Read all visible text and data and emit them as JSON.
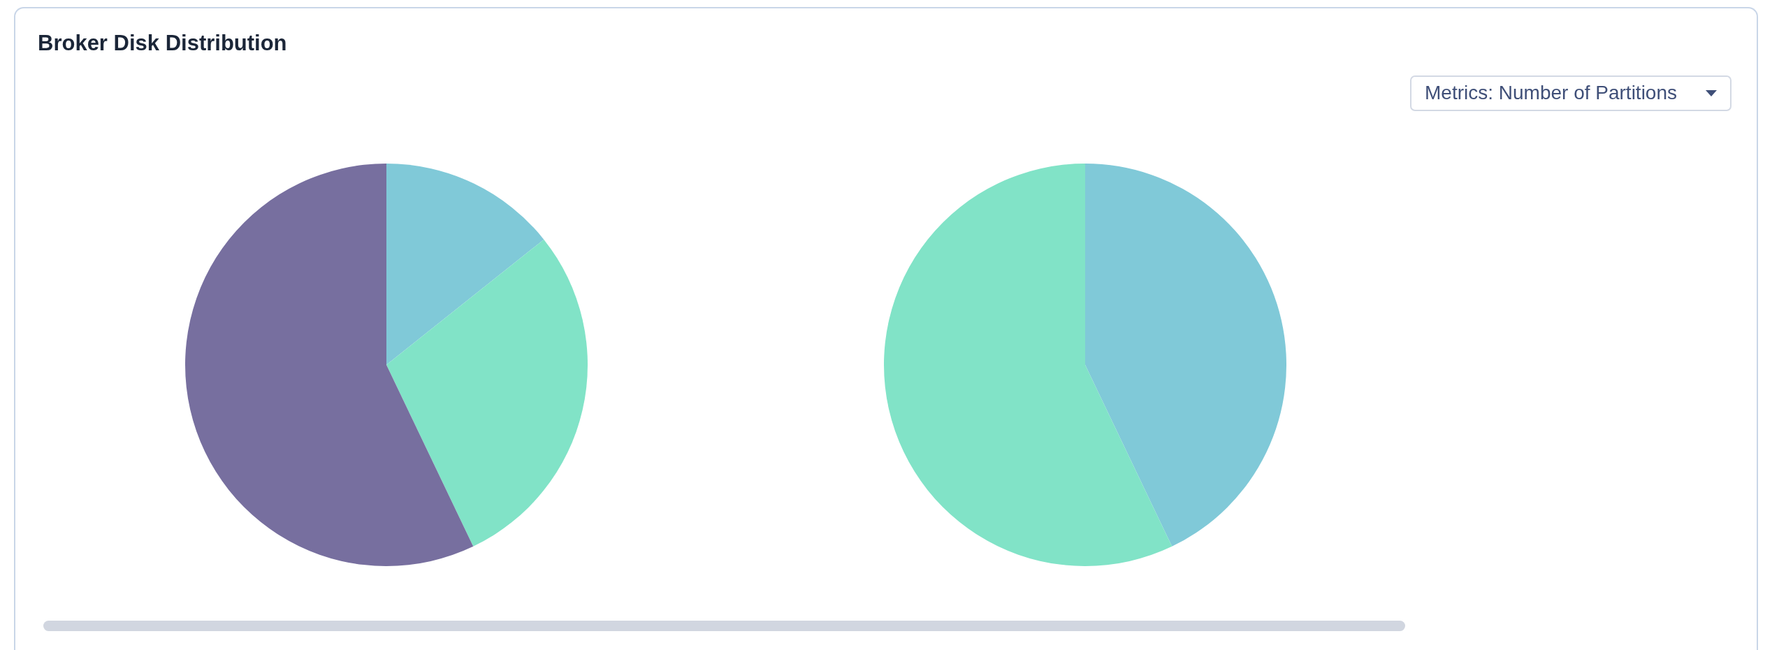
{
  "chart_data": [
    {
      "type": "other",
      "title": "Broker Disk Distribution",
      "annotations": [
        "Metrics: Number of Partitions"
      ]
    },
    {
      "type": "pie",
      "categories": [
        null,
        null,
        null
      ],
      "values": [
        14.3,
        28.6,
        57.1
      ],
      "colors": [
        "#80c9d8",
        "#81e3c7",
        "#776f9f"
      ]
    },
    {
      "type": "pie",
      "categories": [
        null,
        null
      ],
      "values": [
        42.9,
        57.1
      ],
      "colors": [
        "#80c9d8",
        "#81e3c7"
      ]
    }
  ]
}
